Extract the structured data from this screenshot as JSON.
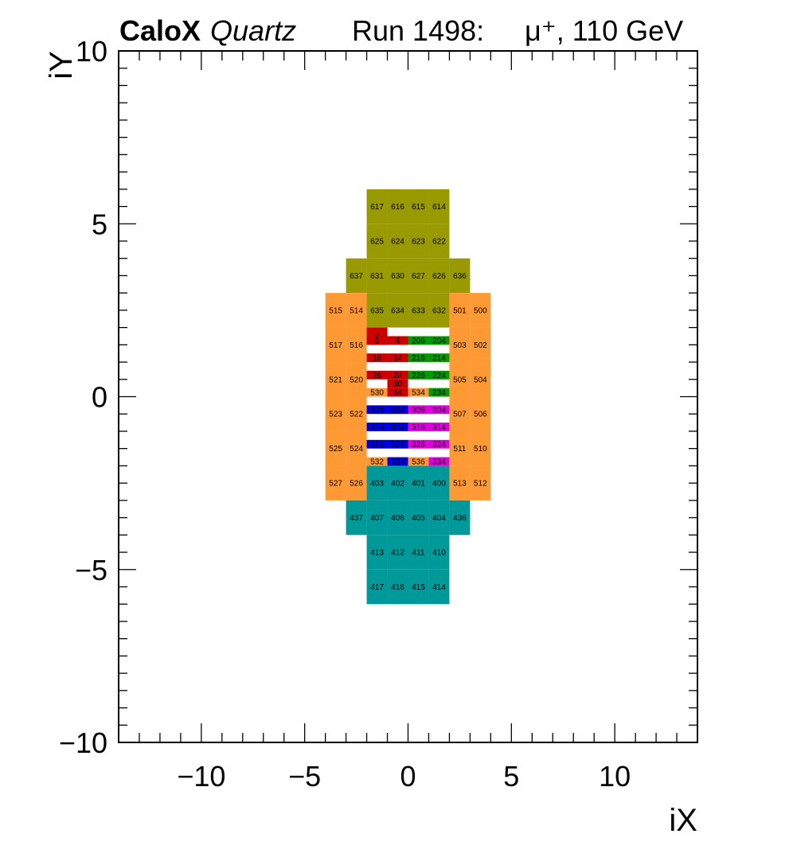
{
  "header": {
    "brand_bold": "CaloX",
    "brand_italic": "Quartz",
    "run_label": "Run 1498:",
    "beam_label": "μ⁺, 110 GeV"
  },
  "chart_data": {
    "type": "heatmap",
    "title": "",
    "xlabel": "iX",
    "ylabel": "iY",
    "xlim": [
      -14,
      14
    ],
    "ylim": [
      -10,
      10
    ],
    "xticks": [
      -10,
      -5,
      0,
      5,
      10
    ],
    "yticks": [
      -10,
      -5,
      0,
      5,
      10
    ],
    "xtick_labels": [
      "−10",
      "−5",
      "0",
      "5",
      "10"
    ],
    "ytick_labels": [
      "−10",
      "−5",
      "0",
      "5",
      "10"
    ],
    "grid": false,
    "legend": "none",
    "groups": [
      {
        "id": "olive",
        "color": "#999900",
        "cells": [
          {
            "x0": -2,
            "x1": -1,
            "y0": 5,
            "y1": 6,
            "label": "617"
          },
          {
            "x0": -1,
            "x1": 0,
            "y0": 5,
            "y1": 6,
            "label": "616"
          },
          {
            "x0": 0,
            "x1": 1,
            "y0": 5,
            "y1": 6,
            "label": "615"
          },
          {
            "x0": 1,
            "x1": 2,
            "y0": 5,
            "y1": 6,
            "label": "614"
          },
          {
            "x0": -2,
            "x1": -1,
            "y0": 4,
            "y1": 5,
            "label": "625"
          },
          {
            "x0": -1,
            "x1": 0,
            "y0": 4,
            "y1": 5,
            "label": "624"
          },
          {
            "x0": 0,
            "x1": 1,
            "y0": 4,
            "y1": 5,
            "label": "623"
          },
          {
            "x0": 1,
            "x1": 2,
            "y0": 4,
            "y1": 5,
            "label": "622"
          },
          {
            "x0": -3,
            "x1": -2,
            "y0": 3,
            "y1": 4,
            "label": "637"
          },
          {
            "x0": -2,
            "x1": -1,
            "y0": 3,
            "y1": 4,
            "label": "631"
          },
          {
            "x0": -1,
            "x1": 0,
            "y0": 3,
            "y1": 4,
            "label": "630"
          },
          {
            "x0": 0,
            "x1": 1,
            "y0": 3,
            "y1": 4,
            "label": "627"
          },
          {
            "x0": 1,
            "x1": 2,
            "y0": 3,
            "y1": 4,
            "label": "626"
          },
          {
            "x0": 2,
            "x1": 3,
            "y0": 3,
            "y1": 4,
            "label": "636"
          },
          {
            "x0": -2,
            "x1": -1,
            "y0": 2,
            "y1": 3,
            "label": "635"
          },
          {
            "x0": -1,
            "x1": 0,
            "y0": 2,
            "y1": 3,
            "label": "634"
          },
          {
            "x0": 0,
            "x1": 1,
            "y0": 2,
            "y1": 3,
            "label": "633"
          },
          {
            "x0": 1,
            "x1": 2,
            "y0": 2,
            "y1": 3,
            "label": "632"
          }
        ]
      },
      {
        "id": "orange",
        "color": "#ff9933",
        "cells": [
          {
            "x0": -4,
            "x1": -3,
            "y0": 2,
            "y1": 3,
            "label": "515"
          },
          {
            "x0": -3,
            "x1": -2,
            "y0": 2,
            "y1": 3,
            "label": "514"
          },
          {
            "x0": 2,
            "x1": 3,
            "y0": 2,
            "y1": 3,
            "label": "501"
          },
          {
            "x0": 3,
            "x1": 4,
            "y0": 2,
            "y1": 3,
            "label": "500"
          },
          {
            "x0": -4,
            "x1": -3,
            "y0": 1,
            "y1": 2,
            "label": "517"
          },
          {
            "x0": -3,
            "x1": -2,
            "y0": 1,
            "y1": 2,
            "label": "516"
          },
          {
            "x0": 2,
            "x1": 3,
            "y0": 1,
            "y1": 2,
            "label": "503"
          },
          {
            "x0": 3,
            "x1": 4,
            "y0": 1,
            "y1": 2,
            "label": "502"
          },
          {
            "x0": -4,
            "x1": -3,
            "y0": 0,
            "y1": 1,
            "label": "521"
          },
          {
            "x0": -3,
            "x1": -2,
            "y0": 0,
            "y1": 1,
            "label": "520"
          },
          {
            "x0": 2,
            "x1": 3,
            "y0": 0,
            "y1": 1,
            "label": "505"
          },
          {
            "x0": 3,
            "x1": 4,
            "y0": 0,
            "y1": 1,
            "label": "504"
          },
          {
            "x0": -4,
            "x1": -3,
            "y0": -1,
            "y1": 0,
            "label": "523"
          },
          {
            "x0": -3,
            "x1": -2,
            "y0": -1,
            "y1": 0,
            "label": "522"
          },
          {
            "x0": 2,
            "x1": 3,
            "y0": -1,
            "y1": 0,
            "label": "507"
          },
          {
            "x0": 3,
            "x1": 4,
            "y0": -1,
            "y1": 0,
            "label": "506"
          },
          {
            "x0": -4,
            "x1": -3,
            "y0": -2,
            "y1": -1,
            "label": "525"
          },
          {
            "x0": -3,
            "x1": -2,
            "y0": -2,
            "y1": -1,
            "label": "524"
          },
          {
            "x0": 2,
            "x1": 3,
            "y0": -2,
            "y1": -1,
            "label": "511"
          },
          {
            "x0": 3,
            "x1": 4,
            "y0": -2,
            "y1": -1,
            "label": "510"
          },
          {
            "x0": -4,
            "x1": -3,
            "y0": -3,
            "y1": -2,
            "label": "527"
          },
          {
            "x0": -3,
            "x1": -2,
            "y0": -3,
            "y1": -2,
            "label": "526"
          },
          {
            "x0": 2,
            "x1": 3,
            "y0": -3,
            "y1": -2,
            "label": "513"
          },
          {
            "x0": 3,
            "x1": 4,
            "y0": -3,
            "y1": -2,
            "label": "512"
          },
          {
            "x0": -2,
            "x1": -1,
            "y0": -0.0,
            "y1": 0.25,
            "label": "530"
          },
          {
            "x0": 0,
            "x1": 1,
            "y0": -0.0,
            "y1": 0.25,
            "label": "534"
          },
          {
            "x0": -2,
            "x1": -1,
            "y0": -2.0,
            "y1": -1.75,
            "label": "532"
          },
          {
            "x0": 0,
            "x1": 1,
            "y0": -2.0,
            "y1": -1.75,
            "label": "536"
          }
        ]
      },
      {
        "id": "red",
        "color": "#cc0000",
        "cells": [
          {
            "x0": -2,
            "x1": -1,
            "y0": 1.5,
            "y1": 2,
            "label": "2"
          },
          {
            "x0": -2,
            "x1": -1,
            "y0": 1.5,
            "y1": 1.75,
            "label": "6"
          },
          {
            "x0": -1,
            "x1": 0,
            "y0": 1.5,
            "y1": 1.75,
            "label": "4"
          },
          {
            "x0": -2,
            "x1": -1,
            "y0": 1.0,
            "y1": 1.25,
            "label": "16"
          },
          {
            "x0": -1,
            "x1": 0,
            "y0": 1.0,
            "y1": 1.25,
            "label": "14"
          },
          {
            "x0": -2,
            "x1": -1,
            "y0": 0.5,
            "y1": 0.75,
            "label": "26"
          },
          {
            "x0": -1,
            "x1": 0,
            "y0": 0.5,
            "y1": 0.75,
            "label": "24"
          },
          {
            "x0": -1,
            "x1": 0,
            "y0": 0.25,
            "y1": 0.5,
            "label": "30"
          },
          {
            "x0": -1,
            "x1": 0,
            "y0": 0.0,
            "y1": 0.25,
            "label": "34"
          }
        ]
      },
      {
        "id": "green",
        "color": "#009900",
        "cells": [
          {
            "x0": 0,
            "x1": 1,
            "y0": 1.5,
            "y1": 1.75,
            "label": "206"
          },
          {
            "x0": 1,
            "x1": 2,
            "y0": 1.5,
            "y1": 1.75,
            "label": "204"
          },
          {
            "x0": 0,
            "x1": 1,
            "y0": 1.0,
            "y1": 1.25,
            "label": "216"
          },
          {
            "x0": 1,
            "x1": 2,
            "y0": 1.0,
            "y1": 1.25,
            "label": "214"
          },
          {
            "x0": 0,
            "x1": 1,
            "y0": 0.5,
            "y1": 0.75,
            "label": "226"
          },
          {
            "x0": 1,
            "x1": 2,
            "y0": 0.5,
            "y1": 0.75,
            "label": "224"
          },
          {
            "x0": 1,
            "x1": 2,
            "y0": 0.0,
            "y1": 0.25,
            "label": "234"
          }
        ]
      },
      {
        "id": "blue",
        "color": "#0000dd",
        "cells": [
          {
            "x0": -2,
            "x1": -1,
            "y0": -0.5,
            "y1": -0.25,
            "label": "106"
          },
          {
            "x0": -1,
            "x1": 0,
            "y0": -0.5,
            "y1": -0.25,
            "label": "104"
          },
          {
            "x0": -2,
            "x1": -1,
            "y0": -1.0,
            "y1": -0.75,
            "label": "116"
          },
          {
            "x0": -1,
            "x1": 0,
            "y0": -1.0,
            "y1": -0.75,
            "label": "114"
          },
          {
            "x0": -2,
            "x1": -1,
            "y0": -1.5,
            "y1": -1.25,
            "label": "126"
          },
          {
            "x0": -1,
            "x1": 0,
            "y0": -1.5,
            "y1": -1.25,
            "label": "124"
          },
          {
            "x0": -1,
            "x1": 0,
            "y0": -2.0,
            "y1": -1.75,
            "label": "134"
          }
        ]
      },
      {
        "id": "magenta",
        "color": "#dd00dd",
        "cells": [
          {
            "x0": 0,
            "x1": 1,
            "y0": -0.5,
            "y1": -0.25,
            "label": "306"
          },
          {
            "x0": 1,
            "x1": 2,
            "y0": -0.5,
            "y1": -0.25,
            "label": "304"
          },
          {
            "x0": 0,
            "x1": 1,
            "y0": -1.0,
            "y1": -0.75,
            "label": "316"
          },
          {
            "x0": 1,
            "x1": 2,
            "y0": -1.0,
            "y1": -0.75,
            "label": "314"
          },
          {
            "x0": 0,
            "x1": 1,
            "y0": -1.5,
            "y1": -1.25,
            "label": "326"
          },
          {
            "x0": 1,
            "x1": 2,
            "y0": -1.5,
            "y1": -1.25,
            "label": "324"
          },
          {
            "x0": 1,
            "x1": 2,
            "y0": -2.0,
            "y1": -1.75,
            "label": "334"
          }
        ]
      },
      {
        "id": "teal",
        "color": "#009999",
        "cells": [
          {
            "x0": -2,
            "x1": -1,
            "y0": -3,
            "y1": -2,
            "label": "403"
          },
          {
            "x0": -1,
            "x1": 0,
            "y0": -3,
            "y1": -2,
            "label": "402"
          },
          {
            "x0": 0,
            "x1": 1,
            "y0": -3,
            "y1": -2,
            "label": "401"
          },
          {
            "x0": 1,
            "x1": 2,
            "y0": -3,
            "y1": -2,
            "label": "400"
          },
          {
            "x0": -3,
            "x1": -2,
            "y0": -4,
            "y1": -3,
            "label": "437"
          },
          {
            "x0": -2,
            "x1": -1,
            "y0": -4,
            "y1": -3,
            "label": "407"
          },
          {
            "x0": -1,
            "x1": 0,
            "y0": -4,
            "y1": -3,
            "label": "406"
          },
          {
            "x0": 0,
            "x1": 1,
            "y0": -4,
            "y1": -3,
            "label": "405"
          },
          {
            "x0": 1,
            "x1": 2,
            "y0": -4,
            "y1": -3,
            "label": "404"
          },
          {
            "x0": 2,
            "x1": 3,
            "y0": -4,
            "y1": -3,
            "label": "436"
          },
          {
            "x0": -2,
            "x1": -1,
            "y0": -5,
            "y1": -4,
            "label": "413"
          },
          {
            "x0": -1,
            "x1": 0,
            "y0": -5,
            "y1": -4,
            "label": "412"
          },
          {
            "x0": 0,
            "x1": 1,
            "y0": -5,
            "y1": -4,
            "label": "411"
          },
          {
            "x0": 1,
            "x1": 2,
            "y0": -5,
            "y1": -4,
            "label": "410"
          },
          {
            "x0": -2,
            "x1": -1,
            "y0": -6,
            "y1": -5,
            "label": "417"
          },
          {
            "x0": -1,
            "x1": 0,
            "y0": -6,
            "y1": -5,
            "label": "416"
          },
          {
            "x0": 0,
            "x1": 1,
            "y0": -6,
            "y1": -5,
            "label": "415"
          },
          {
            "x0": 1,
            "x1": 2,
            "y0": -6,
            "y1": -5,
            "label": "414"
          }
        ]
      }
    ]
  }
}
